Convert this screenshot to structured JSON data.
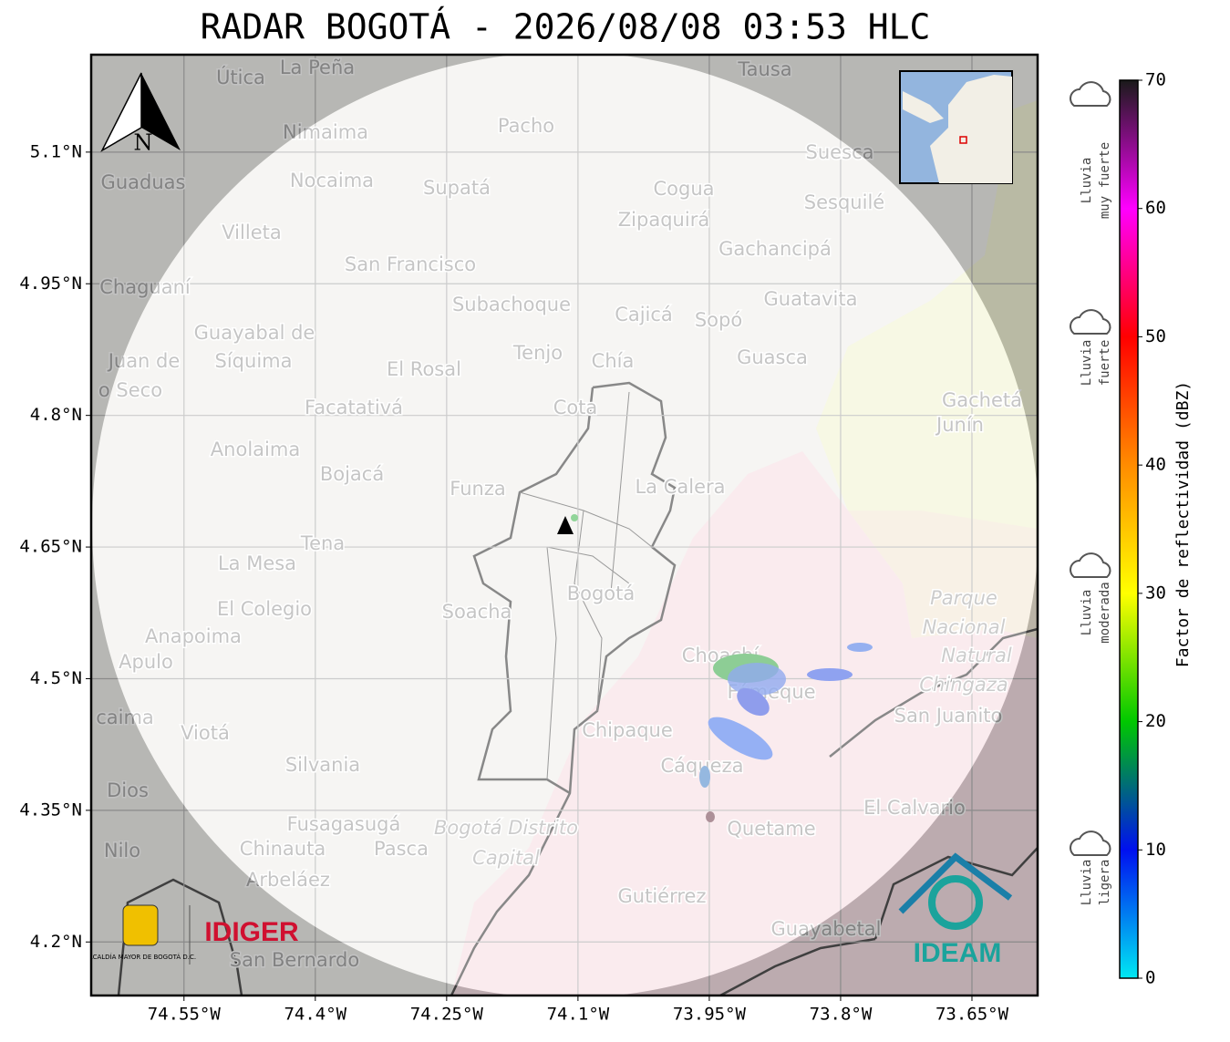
{
  "map": {
    "title": "RADAR BOGOTÁ - 2026/08/08 03:53 HLC",
    "xlim": [
      -74.656,
      -73.575
    ],
    "ylim": [
      4.139,
      5.211
    ],
    "xticks": [
      {
        "value": -74.55,
        "label": "74.55°W"
      },
      {
        "value": -74.4,
        "label": "74.4°W"
      },
      {
        "value": -74.25,
        "label": "74.25°W"
      },
      {
        "value": -74.1,
        "label": "74.1°W"
      },
      {
        "value": -73.95,
        "label": "73.95°W"
      },
      {
        "value": -73.8,
        "label": "73.8°W"
      },
      {
        "value": -73.65,
        "label": "73.65°W"
      }
    ],
    "yticks": [
      {
        "value": 5.1,
        "label": "5.1°N"
      },
      {
        "value": 4.95,
        "label": "4.95°N"
      },
      {
        "value": 4.8,
        "label": "4.8°N"
      },
      {
        "value": 4.65,
        "label": "4.65°N"
      },
      {
        "value": 4.5,
        "label": "4.5°N"
      },
      {
        "value": 4.35,
        "label": "4.35°N"
      },
      {
        "value": 4.2,
        "label": "4.2°N"
      }
    ],
    "grid": true,
    "north_label": "N",
    "places": [
      "La Peña",
      "Útica",
      "Tausa",
      "Nimaima",
      "Pacho",
      "Guaduas",
      "Nocaima",
      "Supatá",
      "Cogua",
      "Suesca",
      "Sesquilé",
      "Villeta",
      "Zipaquirá",
      "Gachancipá",
      "San Francisco",
      "Chaguaní",
      "Subachoque",
      "Cajicá",
      "Sopó",
      "Guatavita",
      "Guayabal de",
      "Síquima",
      "Juan de",
      "o Seco",
      "Tenjo",
      "El Rosal",
      "Chía",
      "Guasca",
      "Gachetá",
      "Junín",
      "Facatativá",
      "Cota",
      "Anolaima",
      "Bojacá",
      "Funza",
      "La Calera",
      "Tena",
      "La Mesa",
      "Bogotá",
      "El Colegio",
      "Soacha",
      "Parque",
      "Nacional",
      "Natural",
      "Chingaza",
      "Anapoima",
      "Apulo",
      "Choachí",
      "Fómeque",
      "San Juanito",
      "caima",
      "Chipaque",
      "Viotá",
      "Cáqueza",
      "Silvania",
      "Dios",
      "El Calvario",
      "Fusagasugá",
      "Quetame",
      "Bogotá Distrito",
      "Capital",
      "Nilo",
      "Chinauta",
      "Pasca",
      "Arbeláez",
      "Gutiérrez",
      "Guayabetal",
      "San Bernardo"
    ],
    "logos": {
      "alcaldia": "ALCALDÍA MAYOR DE BOGOTÁ D.C.",
      "idiger": "IDIGER",
      "ideam": "IDEAM"
    }
  },
  "colorbar": {
    "label": "Factor de reflectividad (dBZ)",
    "lim": [
      0,
      70
    ],
    "ticks": [
      0,
      10,
      20,
      30,
      40,
      50,
      60,
      70
    ],
    "colors": [
      "#00e8f2",
      "#0010f0",
      "#00c800",
      "#ffff00",
      "#ff8c00",
      "#ff0000",
      "#ff00ff",
      "#1a1a1a"
    ]
  },
  "rain_legend": [
    {
      "lines": [
        "Lluvia",
        "muy fuerte"
      ]
    },
    {
      "lines": [
        "Lluvia",
        "fuerte"
      ]
    },
    {
      "lines": [
        "Lluvia",
        "moderada"
      ]
    },
    {
      "lines": [
        "Lluvia",
        "ligera"
      ]
    }
  ]
}
